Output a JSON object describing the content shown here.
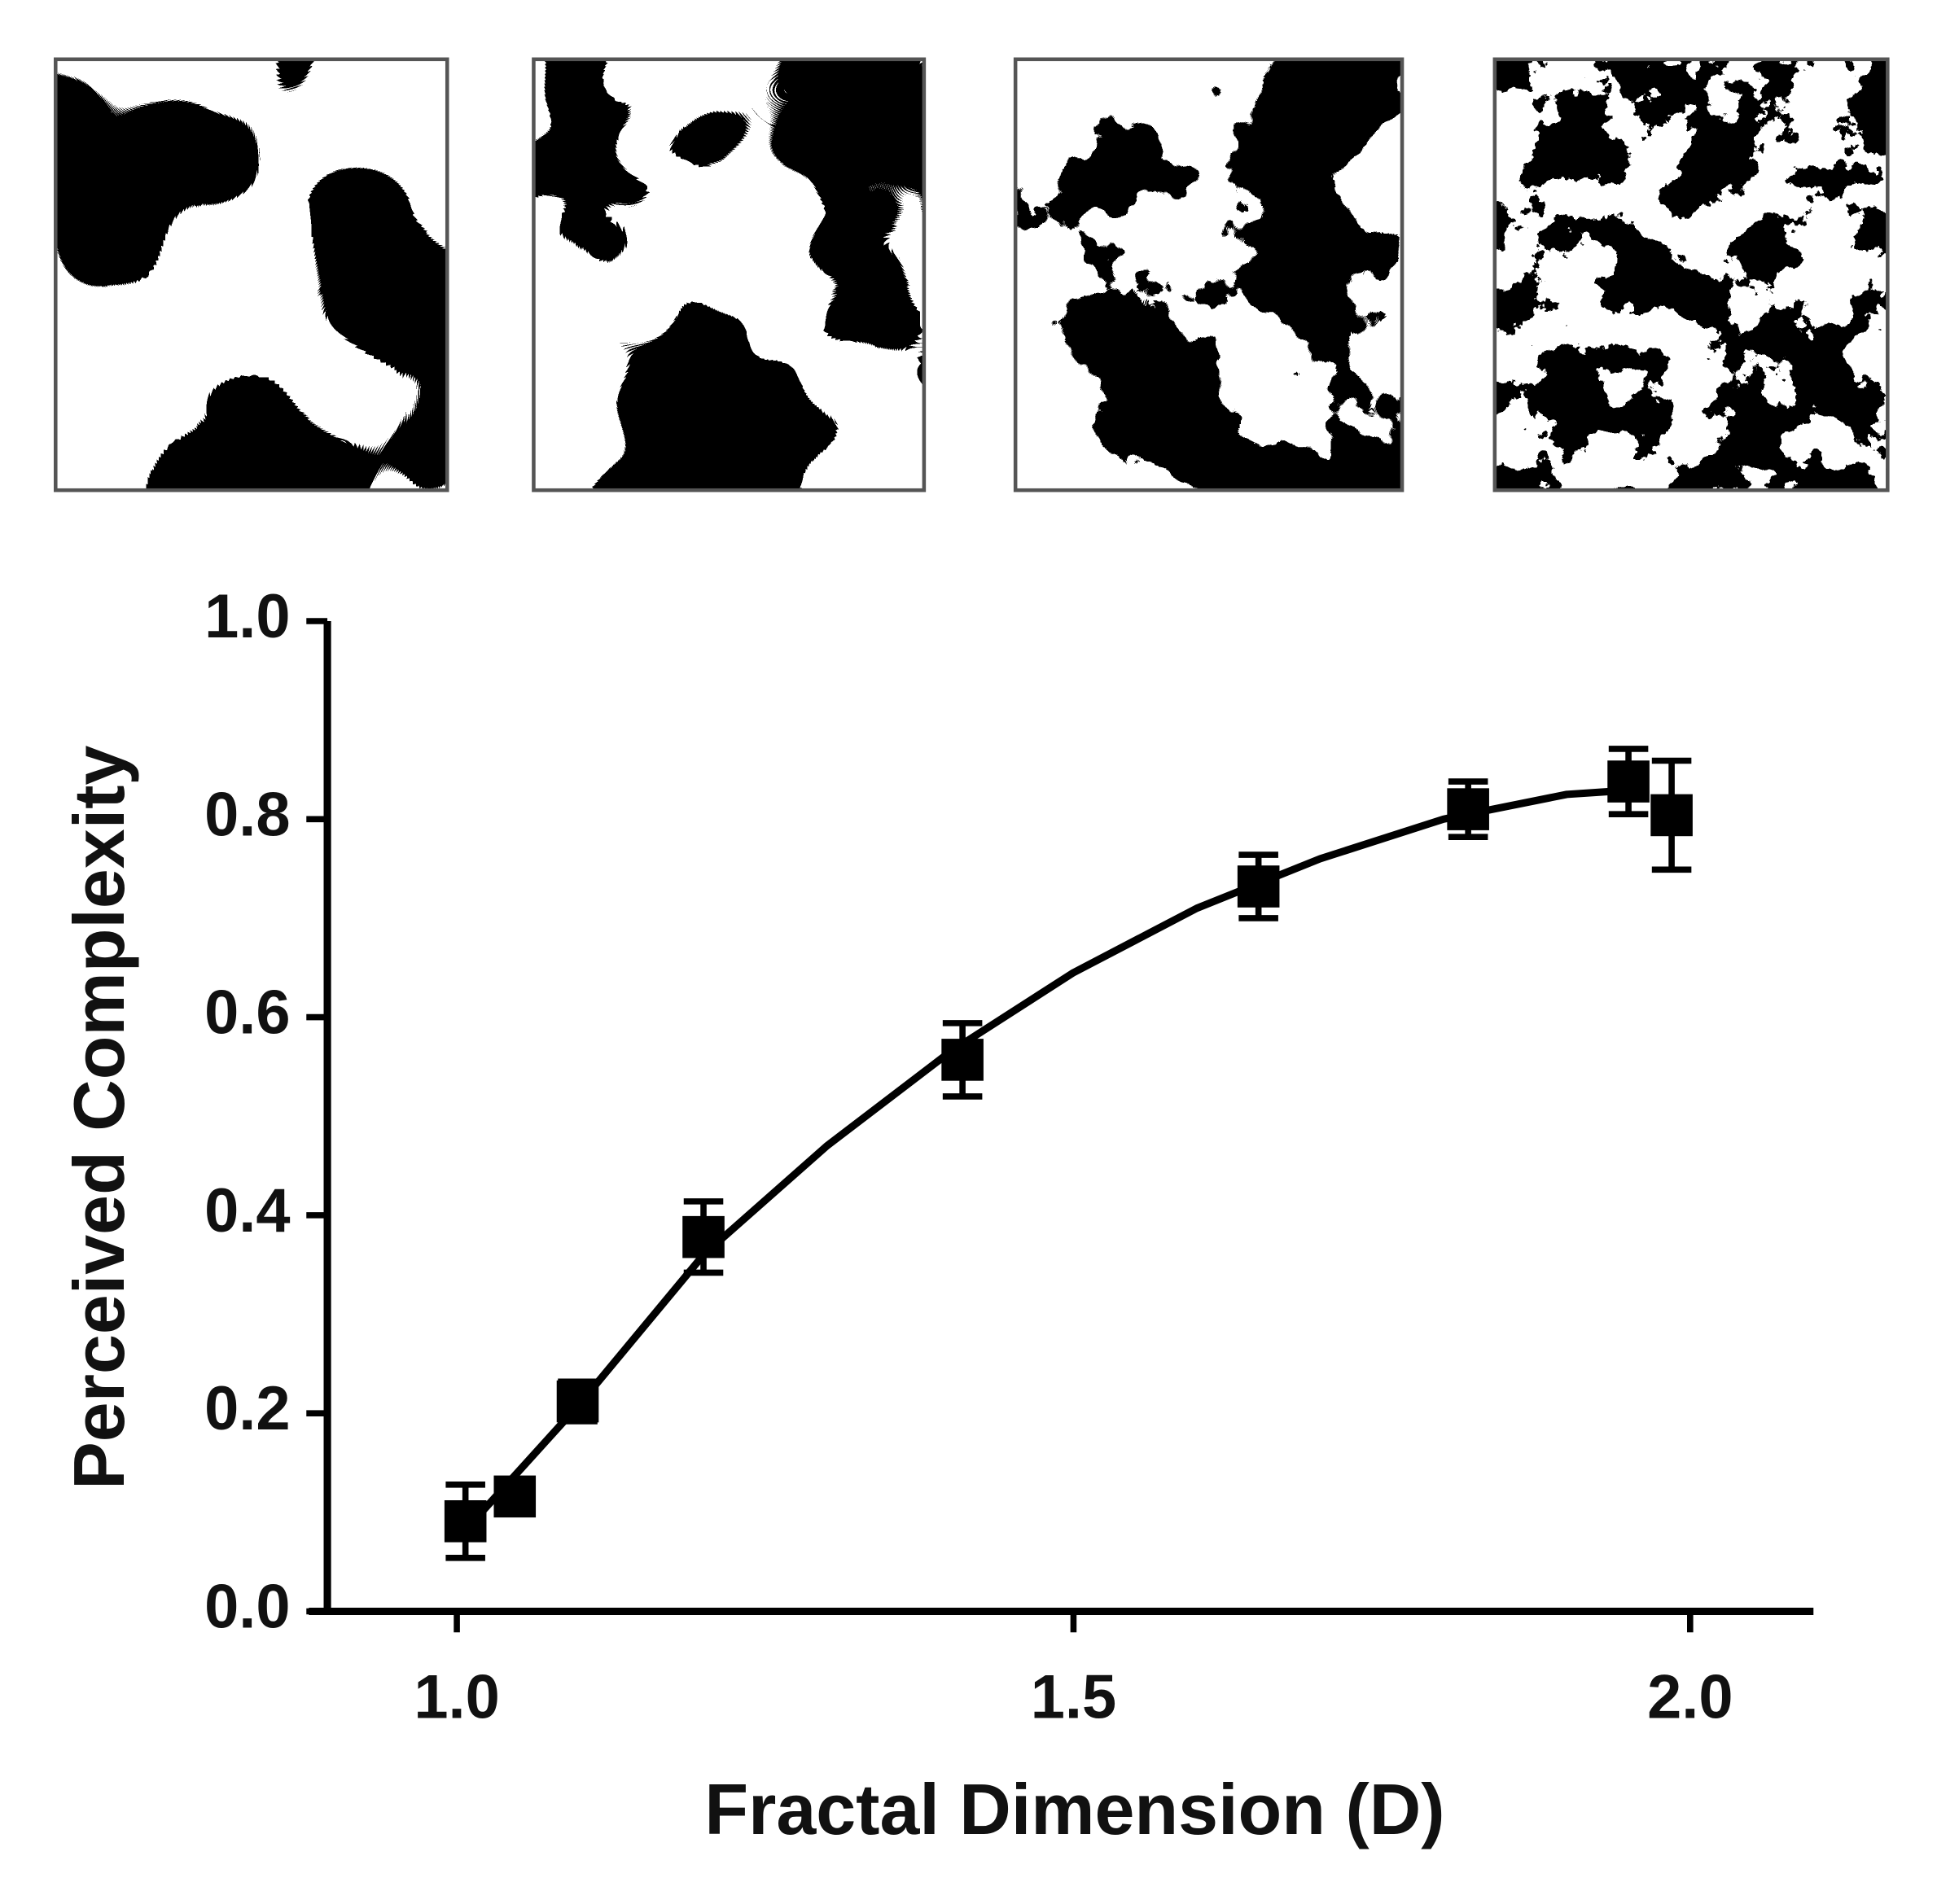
{
  "chart_data": {
    "type": "scatter",
    "x_label": "Fractal Dimension (D)",
    "y_label": "Perceived Complexity",
    "xlim": [
      0.88,
      2.1
    ],
    "ylim": [
      0,
      1.0
    ],
    "xticks": [
      {
        "value": 1,
        "label": "1.0"
      },
      1.5,
      {
        "value": 2,
        "label": "2.0"
      }
    ],
    "yticks": [
      {
        "value": 0,
        "label": "0.0"
      },
      0.2,
      0.4,
      0.6,
      0.8,
      {
        "value": 1,
        "label": "1.0"
      }
    ],
    "series": [
      {
        "color": "#000000",
        "x": [
          1.007,
          1.047,
          1.098,
          1.2,
          1.41,
          1.65,
          1.82,
          1.95,
          1.985
        ],
        "values": [
          0.091,
          0.116,
          0.212,
          0.378,
          0.557,
          0.732,
          0.81,
          0.838,
          0.804
        ],
        "errors": [
          0.037,
          0.01,
          0.02,
          0.036,
          0.037,
          0.032,
          0.028,
          0.033,
          0.055
        ]
      }
    ],
    "fit": {
      "color": "#000000",
      "x": [
        1.02,
        1.1,
        1.2,
        1.3,
        1.4,
        1.5,
        1.6,
        1.7,
        1.8,
        1.9,
        1.96
      ],
      "values": [
        0.1,
        0.21,
        0.36,
        0.47,
        0.565,
        0.645,
        0.71,
        0.76,
        0.8,
        0.825,
        0.83
      ]
    }
  }
}
